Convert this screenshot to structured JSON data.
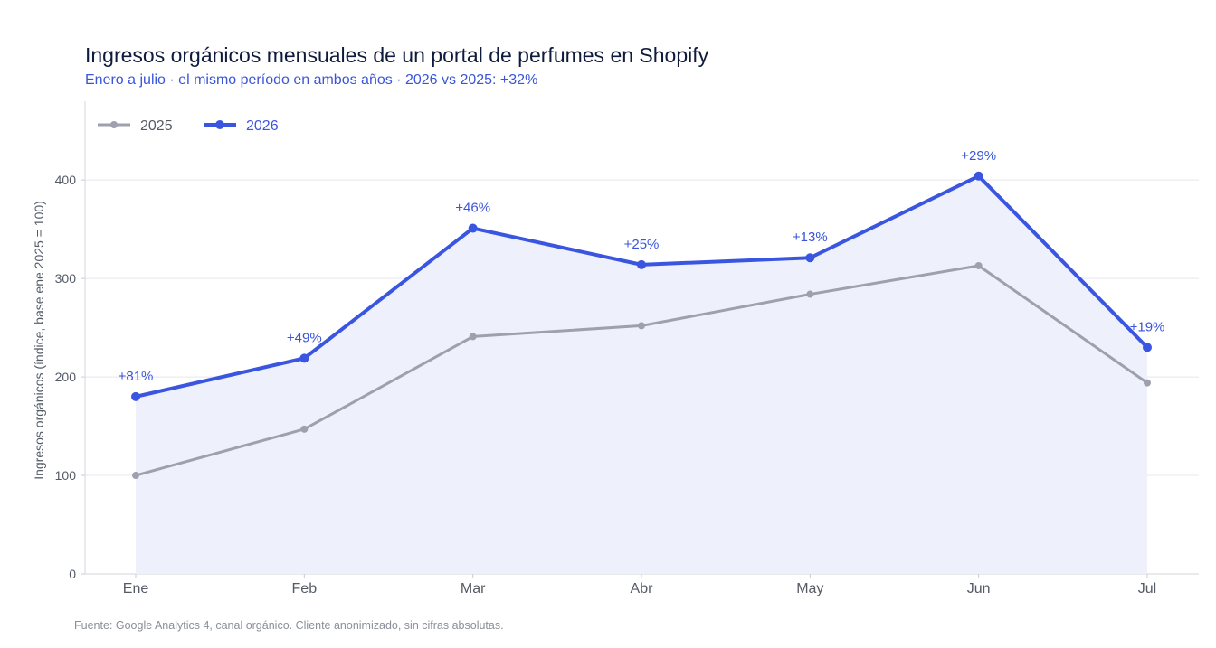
{
  "chart_data": {
    "type": "line",
    "title": "Ingresos orgánicos mensuales de un portal de perfumes en Shopify",
    "subtitle": "Enero a julio · el mismo período en ambos años · 2026 vs 2025: +32%",
    "xlabel": "",
    "ylabel": "Ingresos orgánicos (índice, base ene 2025 = 100)",
    "categories": [
      "Ene",
      "Feb",
      "Mar",
      "Abr",
      "May",
      "Jun",
      "Jul"
    ],
    "yticks": [
      "0",
      "100",
      "200",
      "300",
      "400"
    ],
    "ylim": [
      0,
      480
    ],
    "grid": true,
    "legend_position": "top-left",
    "series": [
      {
        "name": "2025",
        "color": "#9da1ad",
        "values": [
          100,
          147,
          241,
          252,
          284,
          313,
          194
        ]
      },
      {
        "name": "2026",
        "color": "#3a55e0",
        "fill": "#eef1fc",
        "values": [
          180,
          219,
          351,
          314,
          321,
          404,
          230
        ]
      }
    ],
    "annotations": [
      "+81%",
      "+49%",
      "+46%",
      "+25%",
      "+13%",
      "+29%",
      "+19%"
    ],
    "source": "Fuente: Google Analytics 4, canal orgánico. Cliente anonimizado, sin cifras absolutas."
  }
}
